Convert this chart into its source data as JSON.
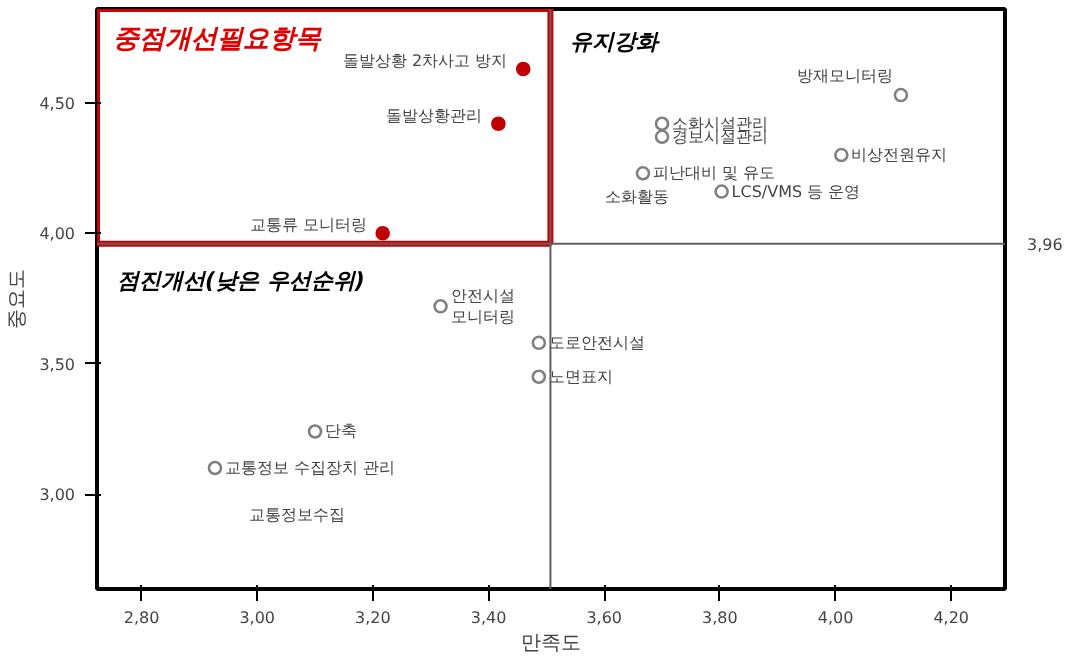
{
  "chart_data": {
    "type": "scatter",
    "xlabel": "만족도",
    "ylabel": "중요도",
    "xlim": [
      2.723,
      4.293
    ],
    "ylim": [
      2.636,
      4.86
    ],
    "xticks": [
      {
        "value": 2.8,
        "label": "2,80"
      },
      {
        "value": 3.0,
        "label": "3,00"
      },
      {
        "value": 3.2,
        "label": "3,20"
      },
      {
        "value": 3.4,
        "label": "3,40"
      },
      {
        "value": 3.6,
        "label": "3,60"
      },
      {
        "value": 3.8,
        "label": "3,80"
      },
      {
        "value": 4.0,
        "label": "4,00"
      },
      {
        "value": 4.2,
        "label": "4,20"
      }
    ],
    "yticks": [
      {
        "value": 3.0,
        "label": "3,00"
      },
      {
        "value": 3.5,
        "label": "3,50"
      },
      {
        "value": 4.0,
        "label": "4,00"
      },
      {
        "value": 4.5,
        "label": "4,50"
      }
    ],
    "grid": false,
    "marker": "circle",
    "series": [
      {
        "color": "#c00000",
        "x": [
          3.46,
          3.417,
          3.217
        ],
        "values": [
          4.63,
          4.42,
          4.0
        ]
      },
      {
        "color": "#808080",
        "x": [
          3.317,
          3.487,
          3.487,
          3.1,
          2.927,
          4.113,
          3.7,
          3.7,
          3.667,
          3.803,
          4.01
        ],
        "values": [
          3.72,
          3.58,
          3.45,
          3.24,
          3.1,
          4.53,
          4.42,
          4.37,
          4.23,
          4.16,
          4.3
        ]
      }
    ],
    "ref_lines": [
      {
        "axis": "x",
        "value": 3.507,
        "label": null,
        "color": "#606060"
      },
      {
        "axis": "y",
        "value": 3.96,
        "label": "3,96",
        "color": "#606060"
      }
    ],
    "annotations": [
      "중점개선필요항목",
      "유지강화",
      "점진개선(낮은 우선순위)",
      {
        "text": "돌발상황 2차사고 방지",
        "x": 3.46,
        "y": 4.63
      },
      {
        "text": "돌발상황관리",
        "x": 3.417,
        "y": 4.42
      },
      {
        "text": "교통류 모니터링",
        "x": 3.217,
        "y": 4.0
      },
      {
        "text": "안전시설\n모니터링",
        "x": 3.317,
        "y": 3.72
      },
      {
        "text": "도로안전시설",
        "x": 3.487,
        "y": 3.58
      },
      {
        "text": "노면표지",
        "x": 3.487,
        "y": 3.45
      },
      {
        "text": "단축",
        "x": 3.1,
        "y": 3.24
      },
      {
        "text": "교통정보 수집장치 관리",
        "x": 2.927,
        "y": 3.1
      },
      "교통정보수집",
      {
        "text": "방재모니터링",
        "x": 4.113,
        "y": 4.53
      },
      {
        "text": "소화시설관리",
        "x": 3.7,
        "y": 4.42
      },
      {
        "text": "경보시설관리",
        "x": 3.7,
        "y": 4.37
      },
      {
        "text": "피난대비 및 유도",
        "x": 3.667,
        "y": 4.23
      },
      "소화활동",
      {
        "text": "LCS/VMS 등 운영",
        "x": 3.803,
        "y": 4.16
      },
      {
        "text": "비상전원유지",
        "x": 4.01,
        "y": 4.3
      }
    ]
  }
}
